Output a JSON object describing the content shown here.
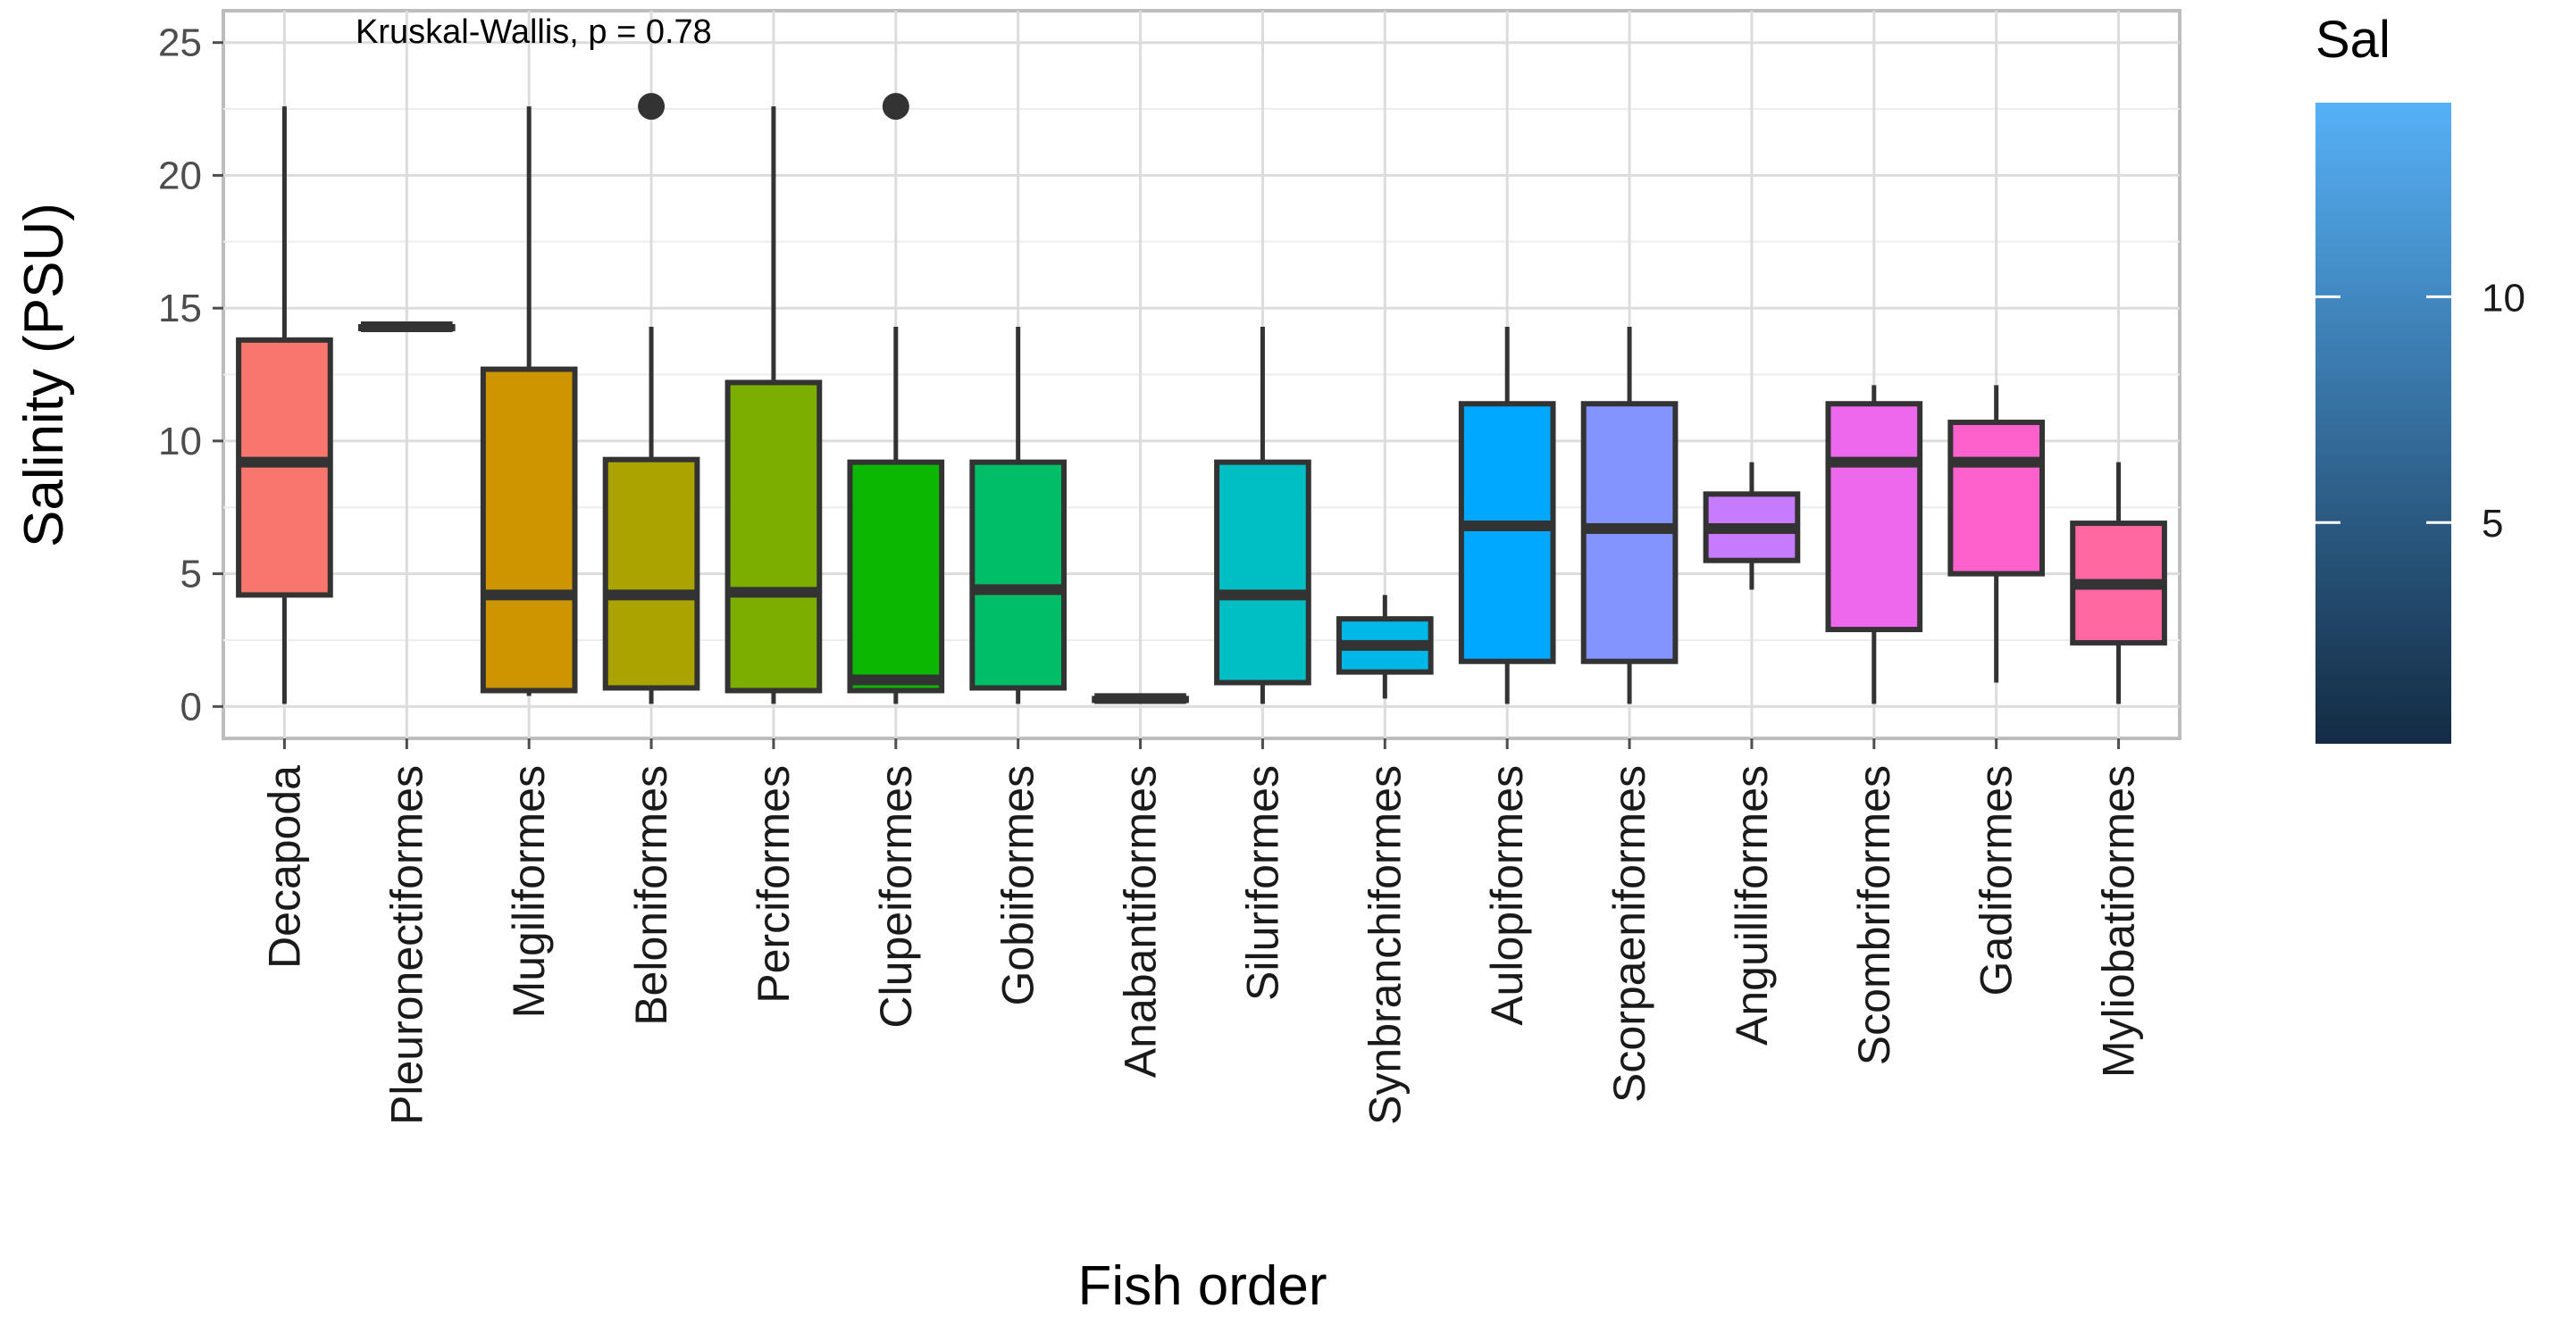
{
  "chart_data": {
    "type": "boxplot",
    "title": "",
    "xlabel": "Fish order",
    "ylabel": "Salinity (PSU)",
    "ylim": [
      -1.2,
      26.2
    ],
    "yticks": [
      "0",
      "5",
      "10",
      "15",
      "20",
      "25"
    ],
    "ytick_values": [
      0,
      5,
      10,
      15,
      20,
      25
    ],
    "annotation": "Kruskal-Wallis, p = 0.78",
    "grid": true,
    "categories": [
      "Decapoda",
      "Pleuronectiformes",
      "Mugiliformes",
      "Beloniformes",
      "Perciformes",
      "Clupeiformes",
      "Gobiiformes",
      "Anabantiformes",
      "Siluriformes",
      "Synbranchiformes",
      "Aulopiformes",
      "Scorpaeniformes",
      "Anguilliformes",
      "Scombriformes",
      "Gadiformes",
      "Myliobatiformes"
    ],
    "boxes": [
      {
        "name": "Decapoda",
        "whisker_low": 0.1,
        "q1": 4.2,
        "median": 9.2,
        "q3": 13.8,
        "whisker_high": 22.6,
        "outliers": [],
        "color": "#F8766D"
      },
      {
        "name": "Pleuronectiformes",
        "whisker_low": 14.3,
        "q1": 14.3,
        "median": 14.3,
        "q3": 14.3,
        "whisker_high": 14.3,
        "outliers": [],
        "color": "#E58700"
      },
      {
        "name": "Mugiliformes",
        "whisker_low": 0.4,
        "q1": 0.6,
        "median": 4.2,
        "q3": 12.7,
        "whisker_high": 22.6,
        "outliers": [],
        "color": "#CD9600"
      },
      {
        "name": "Beloniformes",
        "whisker_low": 0.1,
        "q1": 0.7,
        "median": 4.2,
        "q3": 9.3,
        "whisker_high": 14.3,
        "outliers": [
          22.6
        ],
        "color": "#ABA300"
      },
      {
        "name": "Perciformes",
        "whisker_low": 0.1,
        "q1": 0.6,
        "median": 4.3,
        "q3": 12.2,
        "whisker_high": 22.6,
        "outliers": [],
        "color": "#7CAE00"
      },
      {
        "name": "Clupeiformes",
        "whisker_low": 0.1,
        "q1": 0.6,
        "median": 1.0,
        "q3": 9.2,
        "whisker_high": 14.3,
        "outliers": [
          22.6
        ],
        "color": "#0CB702"
      },
      {
        "name": "Gobiiformes",
        "whisker_low": 0.1,
        "q1": 0.7,
        "median": 4.4,
        "q3": 9.2,
        "whisker_high": 14.3,
        "outliers": [],
        "color": "#00BE67"
      },
      {
        "name": "Anabantiformes",
        "whisker_low": 0.3,
        "q1": 0.3,
        "median": 0.3,
        "q3": 0.3,
        "whisker_high": 0.3,
        "outliers": [],
        "color": "#00C19A"
      },
      {
        "name": "Siluriformes",
        "whisker_low": 0.1,
        "q1": 0.9,
        "median": 4.2,
        "q3": 9.2,
        "whisker_high": 14.3,
        "outliers": [],
        "color": "#00BFC4"
      },
      {
        "name": "Synbranchiformes",
        "whisker_low": 0.3,
        "q1": 1.3,
        "median": 2.3,
        "q3": 3.3,
        "whisker_high": 4.2,
        "outliers": [],
        "color": "#00B8E7"
      },
      {
        "name": "Aulopiformes",
        "whisker_low": 0.1,
        "q1": 1.7,
        "median": 6.8,
        "q3": 11.4,
        "whisker_high": 14.3,
        "outliers": [],
        "color": "#00A9FF"
      },
      {
        "name": "Scorpaeniformes",
        "whisker_low": 0.1,
        "q1": 1.7,
        "median": 6.7,
        "q3": 11.4,
        "whisker_high": 14.3,
        "outliers": [],
        "color": "#8494FF"
      },
      {
        "name": "Anguilliformes",
        "whisker_low": 4.4,
        "q1": 5.5,
        "median": 6.7,
        "q3": 8.0,
        "whisker_high": 9.2,
        "outliers": [],
        "color": "#C77CFF"
      },
      {
        "name": "Scombriformes",
        "whisker_low": 0.1,
        "q1": 2.9,
        "median": 9.2,
        "q3": 11.4,
        "whisker_high": 12.1,
        "outliers": [],
        "color": "#ED68ED"
      },
      {
        "name": "Gadiformes",
        "whisker_low": 0.9,
        "q1": 5.0,
        "median": 9.2,
        "q3": 10.7,
        "whisker_high": 12.1,
        "outliers": [],
        "color": "#FF61CC"
      },
      {
        "name": "Myliobatiformes",
        "whisker_low": 0.1,
        "q1": 2.4,
        "median": 4.6,
        "q3": 6.9,
        "whisker_high": 9.2,
        "outliers": [],
        "color": "#FF68A1"
      }
    ],
    "legend": {
      "title": "Sal",
      "placement": "right",
      "type": "colorbar",
      "range": [
        0.1,
        14.3
      ],
      "ticks": [
        "5",
        "10"
      ],
      "tick_values": [
        5,
        10
      ],
      "low_color": "#132B43",
      "high_color": "#56B1F7"
    }
  }
}
